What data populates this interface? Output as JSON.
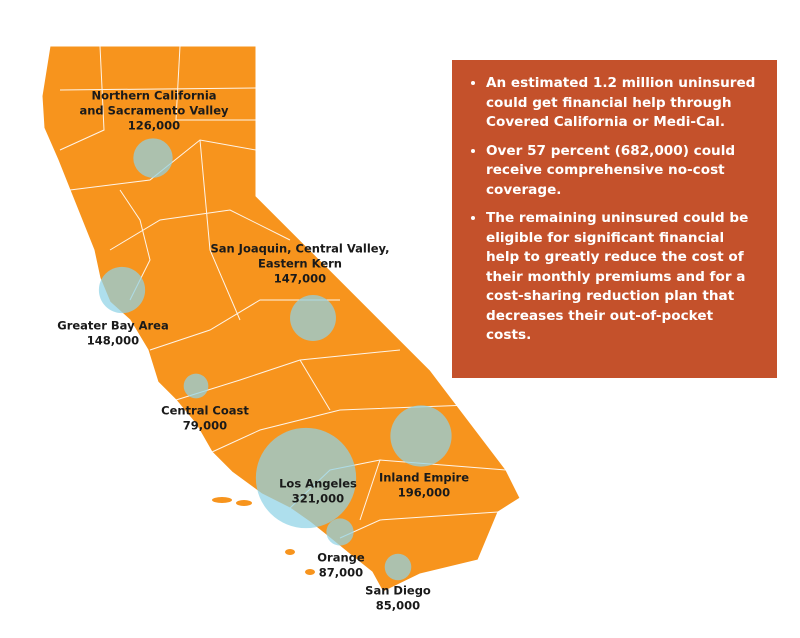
{
  "regions": [
    {
      "name": [
        "Northern California",
        "and Sacramento Valley"
      ],
      "value": 126000,
      "value_label": "126,000"
    },
    {
      "name": [
        "San Joaquin, Central Valley,",
        "Eastern Kern"
      ],
      "value": 147000,
      "value_label": "147,000"
    },
    {
      "name": [
        "Greater Bay Area"
      ],
      "value": 148000,
      "value_label": "148,000"
    },
    {
      "name": [
        "Central Coast"
      ],
      "value": 79000,
      "value_label": "79,000"
    },
    {
      "name": [
        "Los Angeles"
      ],
      "value": 321000,
      "value_label": "321,000"
    },
    {
      "name": [
        "Inland Empire"
      ],
      "value": 196000,
      "value_label": "196,000"
    },
    {
      "name": [
        "Orange"
      ],
      "value": 87000,
      "value_label": "87,000"
    },
    {
      "name": [
        "San Diego"
      ],
      "value": 85000,
      "value_label": "85,000"
    }
  ],
  "notes": {
    "bullets": [
      "An estimated 1.2 million uninsured could get financial help through Covered California or Medi-Cal.",
      "Over 57 percent (682,000) could receive comprehensive no-cost coverage.",
      "The remaining uninsured could be eligible for significant financial help to greatly reduce the cost of their monthly premiums and for a cost-sharing reduction plan that decreases their out-of-pocket costs."
    ]
  }
}
